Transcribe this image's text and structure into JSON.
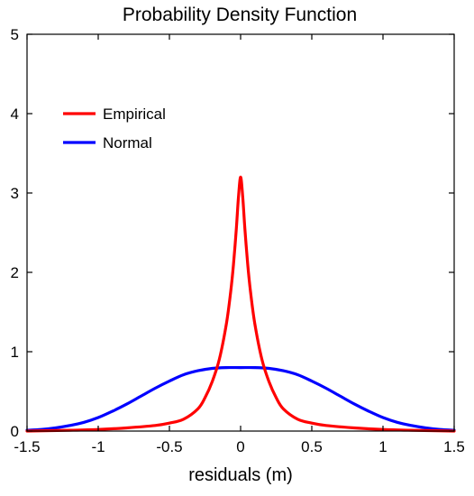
{
  "chart_data": {
    "type": "line",
    "title": "Probability Density Function",
    "xlabel": "residuals (m)",
    "ylabel": "",
    "xlim": [
      -1.5,
      1.5
    ],
    "ylim": [
      0,
      5
    ],
    "xticks": [
      "-1.5",
      "-1",
      "-0.5",
      "0",
      "0.5",
      "1",
      "1.5"
    ],
    "xtick_values": [
      -1.5,
      -1,
      -0.5,
      0,
      0.5,
      1,
      1.5
    ],
    "yticks": [
      "0",
      "1",
      "2",
      "3",
      "4",
      "5"
    ],
    "ytick_values": [
      0,
      1,
      2,
      3,
      4,
      5
    ],
    "grid": false,
    "legend_position": "upper-left",
    "series": [
      {
        "name": "Empirical",
        "color": "#ff0000",
        "x": [
          -1.5,
          -1.2,
          -1.0,
          -0.8,
          -0.6,
          -0.5,
          -0.4,
          -0.3,
          -0.25,
          -0.2,
          -0.15,
          -0.1,
          -0.07,
          -0.05,
          -0.03,
          -0.015,
          0,
          0.015,
          0.03,
          0.05,
          0.07,
          0.1,
          0.15,
          0.2,
          0.25,
          0.3,
          0.4,
          0.5,
          0.6,
          0.8,
          1.0,
          1.2,
          1.5
        ],
        "y": [
          0.0,
          0.01,
          0.02,
          0.04,
          0.07,
          0.1,
          0.15,
          0.28,
          0.42,
          0.62,
          0.9,
          1.35,
          1.75,
          2.1,
          2.55,
          2.95,
          3.2,
          2.95,
          2.55,
          2.1,
          1.75,
          1.35,
          0.9,
          0.62,
          0.42,
          0.28,
          0.15,
          0.1,
          0.07,
          0.04,
          0.02,
          0.01,
          0.0
        ]
      },
      {
        "name": "Normal",
        "color": "#0000ff",
        "x": [
          -1.5,
          -1.4,
          -1.3,
          -1.2,
          -1.1,
          -1.0,
          -0.9,
          -0.8,
          -0.7,
          -0.6,
          -0.5,
          -0.4,
          -0.3,
          -0.2,
          -0.1,
          0,
          0.1,
          0.2,
          0.3,
          0.4,
          0.5,
          0.6,
          0.7,
          0.8,
          0.9,
          1.0,
          1.1,
          1.2,
          1.3,
          1.4,
          1.5
        ],
        "y": [
          0.01,
          0.02,
          0.04,
          0.07,
          0.11,
          0.17,
          0.25,
          0.34,
          0.44,
          0.54,
          0.63,
          0.71,
          0.76,
          0.79,
          0.8,
          0.8,
          0.8,
          0.79,
          0.76,
          0.71,
          0.63,
          0.54,
          0.44,
          0.34,
          0.25,
          0.17,
          0.11,
          0.07,
          0.04,
          0.02,
          0.01
        ]
      }
    ]
  }
}
